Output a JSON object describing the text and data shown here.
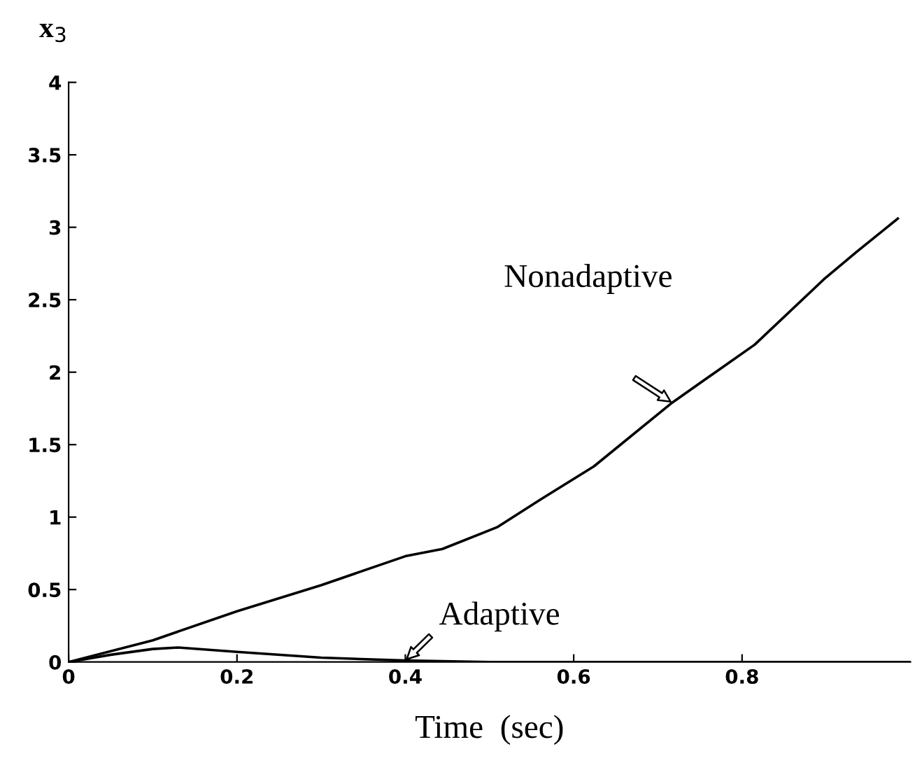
{
  "chart_data": {
    "type": "line",
    "xlabel": "Time  (sec)",
    "ylabel": "x$_{3}$",
    "xlim": [
      0,
      1
    ],
    "ylim": [
      0,
      4
    ],
    "xticks": [
      0,
      0.2,
      0.4,
      0.6,
      0.8
    ],
    "yticks": [
      0,
      0.5,
      1,
      1.5,
      2,
      2.5,
      3,
      3.5,
      4
    ],
    "grid": false,
    "marker": "none",
    "line_style": "solid",
    "series": [
      {
        "name": "Nonadaptive",
        "color": "#000000",
        "x": [
          0,
          0.1,
          0.2,
          0.3,
          0.4,
          0.444,
          0.509,
          0.563,
          0.624,
          0.717,
          0.815,
          0.897,
          0.936,
          0.985
        ],
        "values": [
          0,
          0.15,
          0.35,
          0.53,
          0.73,
          0.78,
          0.93,
          1.13,
          1.35,
          1.79,
          2.19,
          2.64,
          2.83,
          3.06
        ]
      },
      {
        "name": "Adaptive",
        "color": "#000000",
        "x": [
          0,
          0.05,
          0.1,
          0.13,
          0.2,
          0.3,
          0.4,
          0.5,
          0.7,
          1.0
        ],
        "values": [
          0,
          0.05,
          0.09,
          0.1,
          0.07,
          0.03,
          0.01,
          0.0,
          0.0,
          0.0
        ]
      }
    ]
  }
}
